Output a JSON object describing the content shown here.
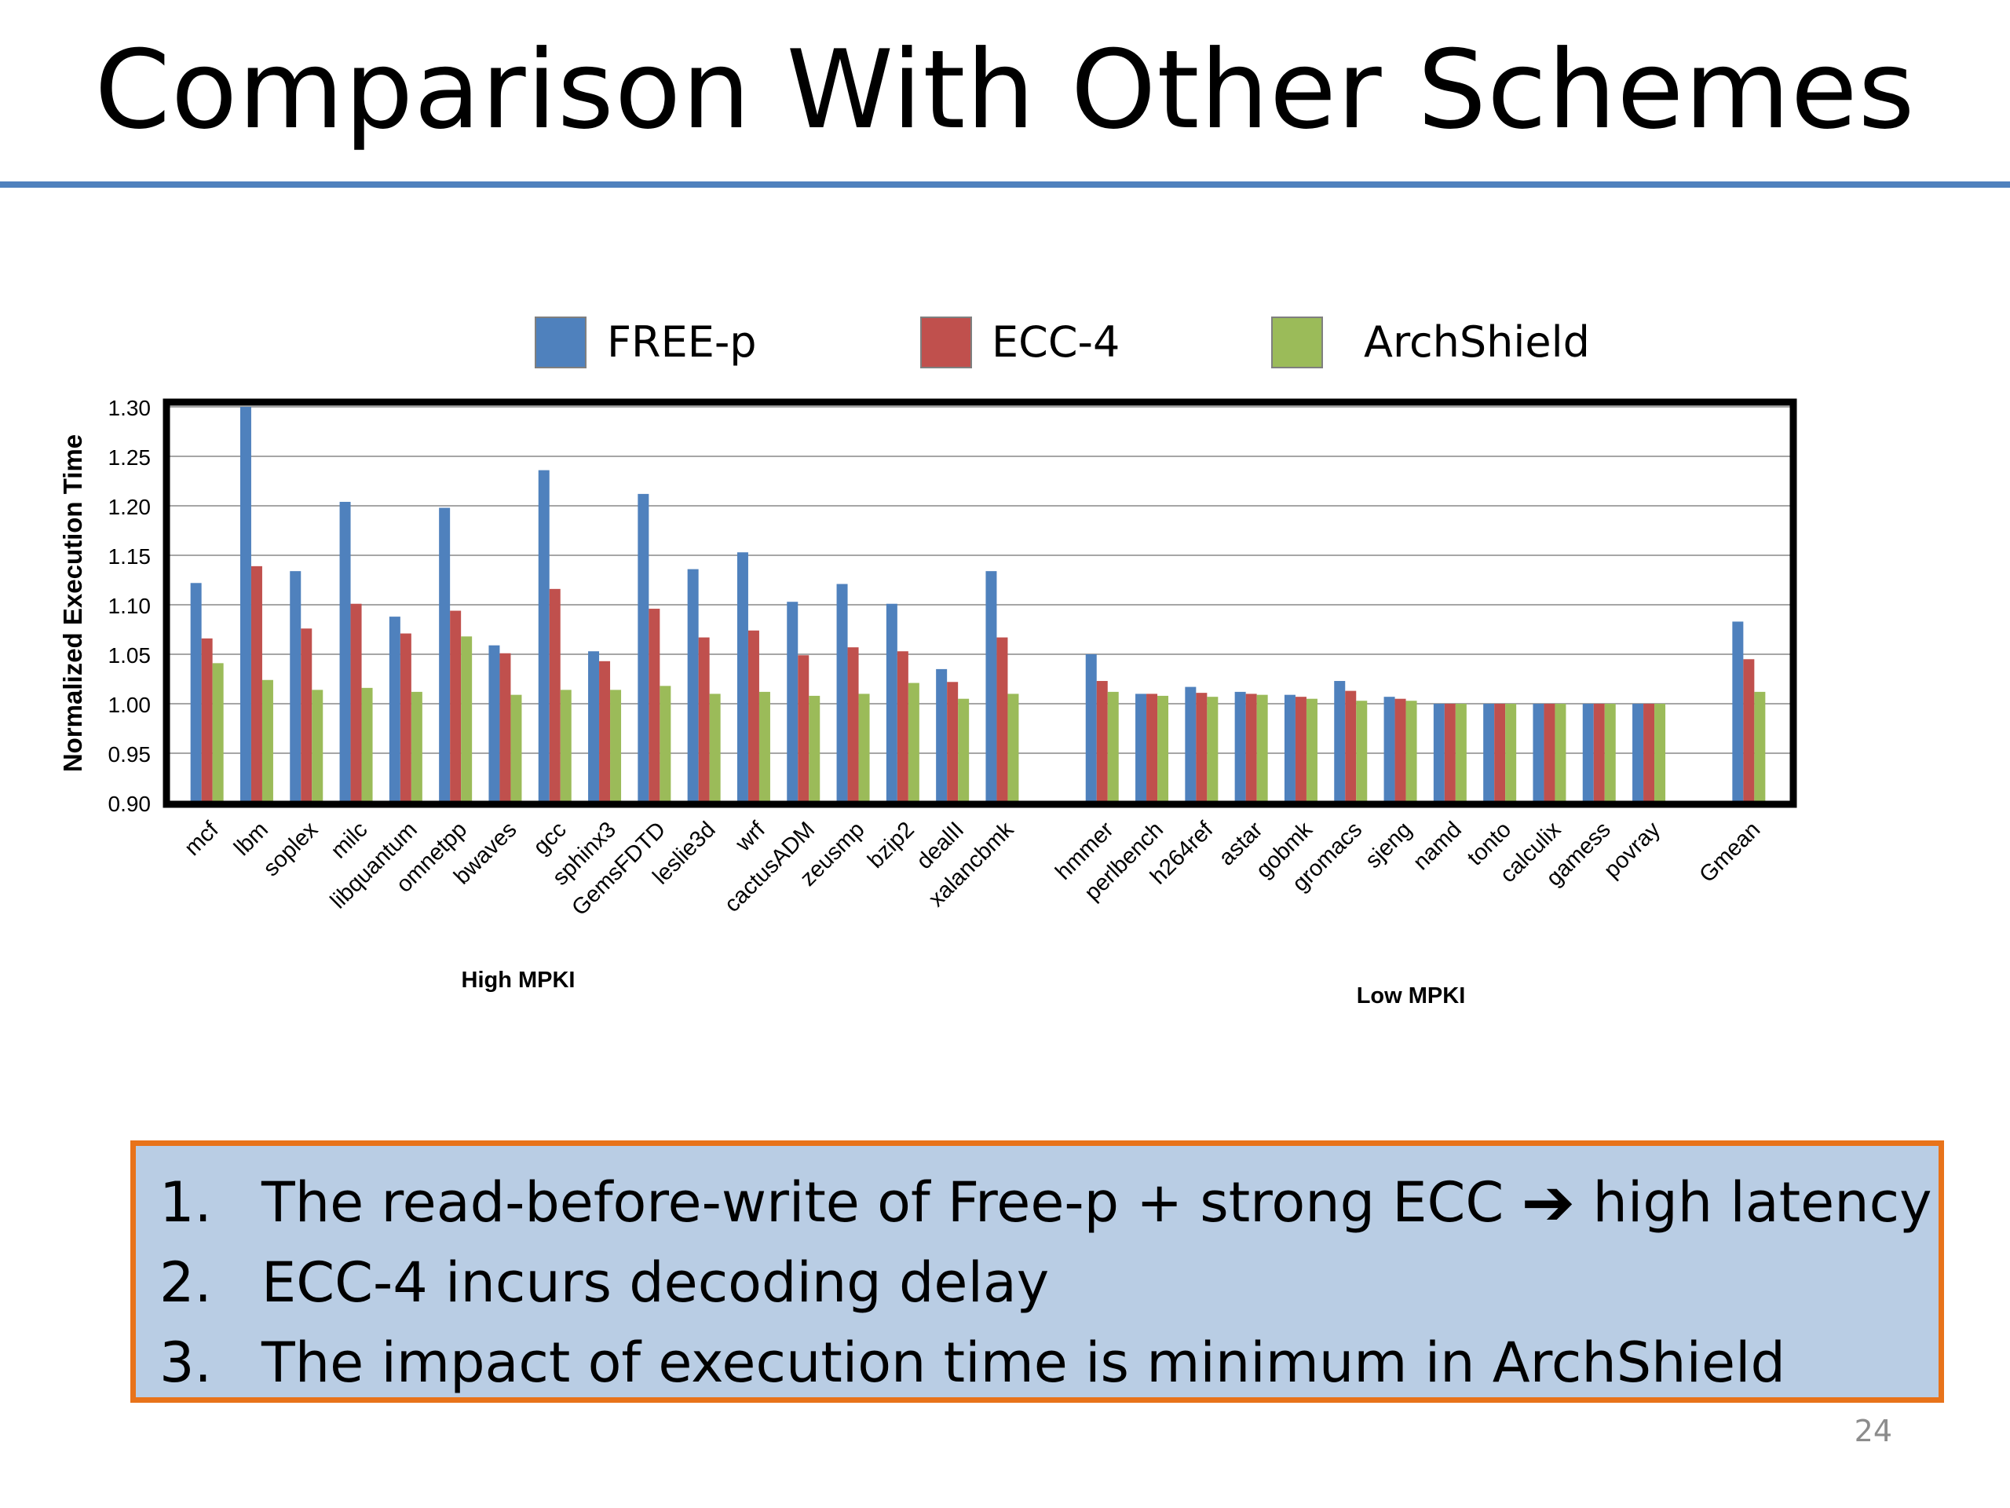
{
  "slide": {
    "title": "Comparison With Other Schemes",
    "slide_number": "24",
    "rule_color": "#4f81bd"
  },
  "chart_data": {
    "type": "bar",
    "ylabel": "Normalized Execution Time",
    "ylim": [
      0.9,
      1.3
    ],
    "yticks": [
      "0.90",
      "0.95",
      "1.00",
      "1.05",
      "1.10",
      "1.15",
      "1.20",
      "1.25",
      "1.30"
    ],
    "grid": true,
    "legend_position": "top",
    "categories": [
      "mcf",
      "lbm",
      "soplex",
      "milc",
      "libquantum",
      "omnetpp",
      "bwaves",
      "gcc",
      "sphinx3",
      "GemsFDTD",
      "leslie3d",
      "wrf",
      "cactusADM",
      "zeusmp",
      "bzip2",
      "dealII",
      "xalancbmk",
      "hmmer",
      "perlbench",
      "h264ref",
      "astar",
      "gobmk",
      "gromacs",
      "sjeng",
      "namd",
      "tonto",
      "calculix",
      "gamess",
      "povray",
      "Gmean"
    ],
    "groups": [
      {
        "label": "High MPKI",
        "count": 17
      },
      {
        "label": "Low MPKI",
        "count": 12
      },
      {
        "label": "",
        "count": 1
      }
    ],
    "series": [
      {
        "name": "FREE-p",
        "color": "#4f81bd",
        "values": [
          1.122,
          1.3,
          1.134,
          1.204,
          1.088,
          1.198,
          1.059,
          1.236,
          1.053,
          1.212,
          1.136,
          1.153,
          1.103,
          1.121,
          1.101,
          1.035,
          1.134,
          1.05,
          1.01,
          1.017,
          1.012,
          1.009,
          1.023,
          1.007,
          1.0,
          1.0,
          1.0,
          1.0,
          1.0,
          1.083
        ]
      },
      {
        "name": "ECC-4",
        "color": "#c0504d",
        "values": [
          1.066,
          1.139,
          1.076,
          1.101,
          1.071,
          1.094,
          1.051,
          1.116,
          1.043,
          1.096,
          1.067,
          1.074,
          1.049,
          1.057,
          1.053,
          1.022,
          1.067,
          1.023,
          1.01,
          1.011,
          1.01,
          1.007,
          1.013,
          1.005,
          1.0,
          1.0,
          1.0,
          1.0,
          1.0,
          1.045
        ]
      },
      {
        "name": "ArchShield",
        "color": "#9bbb59",
        "values": [
          1.041,
          1.024,
          1.014,
          1.016,
          1.012,
          1.068,
          1.009,
          1.014,
          1.014,
          1.018,
          1.01,
          1.012,
          1.008,
          1.01,
          1.021,
          1.005,
          1.01,
          1.012,
          1.008,
          1.007,
          1.009,
          1.005,
          1.003,
          1.003,
          1.0,
          1.0,
          1.0,
          1.0,
          1.0,
          1.012
        ]
      }
    ]
  },
  "callout": {
    "border_color": "#e8731a",
    "background_color": "#b9cde4",
    "arrow_icon": "right-arrow-icon",
    "items": [
      {
        "number": "1.",
        "text_before": "The read-before-write of Free-p + strong ECC",
        "arrow": "➔",
        "text_after": "high latency"
      },
      {
        "number": "2.",
        "text": "ECC-4 incurs decoding delay"
      },
      {
        "number": "3.",
        "text": "The impact of execution time is minimum in ArchShield"
      }
    ]
  }
}
